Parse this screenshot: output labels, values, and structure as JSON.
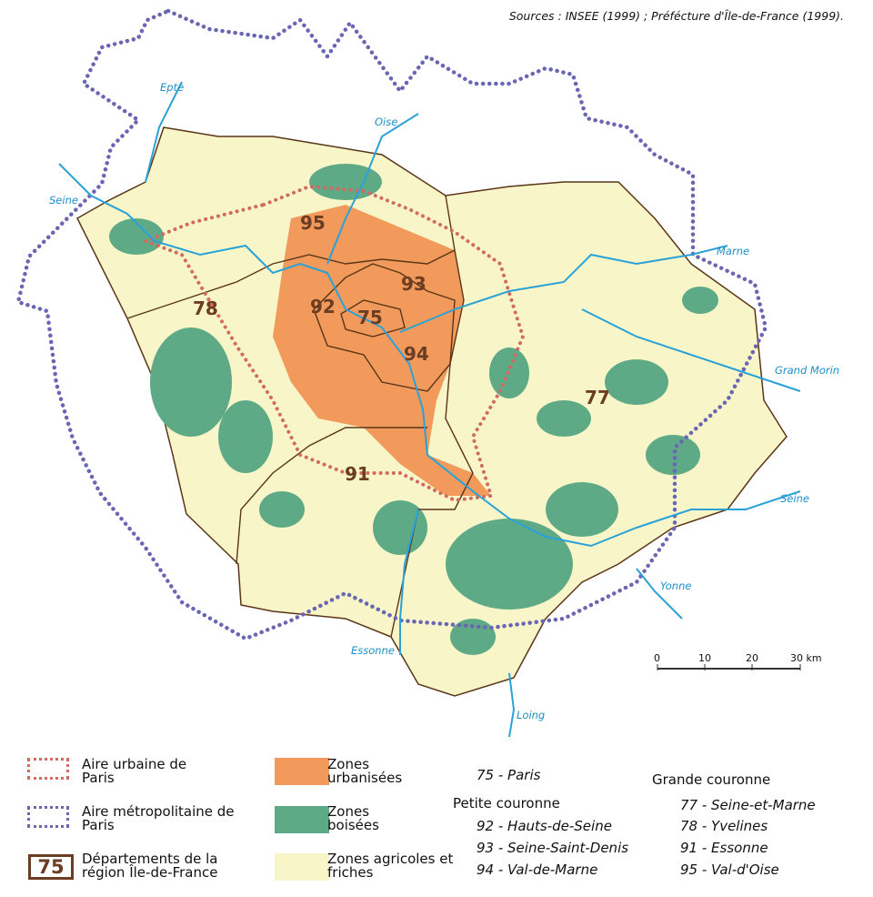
{
  "source": "Sources : INSEE (1999) ; Préfécture d'Île-de-France (1999).",
  "colors": {
    "urban": "#f19a5b",
    "forest": "#5faa86",
    "agri": "#f8f6c8",
    "metro": "#6a66b3",
    "urban_area": "#d06a62",
    "dept": "#6b3d22",
    "river": "#2aa2d8"
  },
  "rivers": [
    "Epte",
    "Oise",
    "Seine",
    "Marne",
    "Grand Morin",
    "Seine",
    "Yonne",
    "Essonne",
    "Loing"
  ],
  "departments_on_map": [
    "95",
    "78",
    "92",
    "93",
    "75",
    "94",
    "77",
    "91"
  ],
  "scale": {
    "ticks": [
      "0",
      "10",
      "20",
      "30 km"
    ]
  },
  "legend": {
    "urban_area": "Aire urbaine de Paris",
    "metro_area": "Aire métropolitaine de Paris",
    "dept_box": "75",
    "departments": "Départements de la région Île-de-France",
    "urbanised": "Zones urbanisées",
    "forest": "Zones boisées",
    "agri": "Zones agricoles et friches",
    "paris": "75 - Paris",
    "petite": "Petite couronne",
    "petite_items": [
      "92 - Hauts-de-Seine",
      "93 - Seine-Saint-Denis",
      "94 - Val-de-Marne"
    ],
    "grande": "Grande couronne",
    "grande_items": [
      "77 - Seine-et-Marne",
      "78 - Yvelines",
      "91 - Essonne",
      "95 - Val-d'Oise"
    ]
  }
}
